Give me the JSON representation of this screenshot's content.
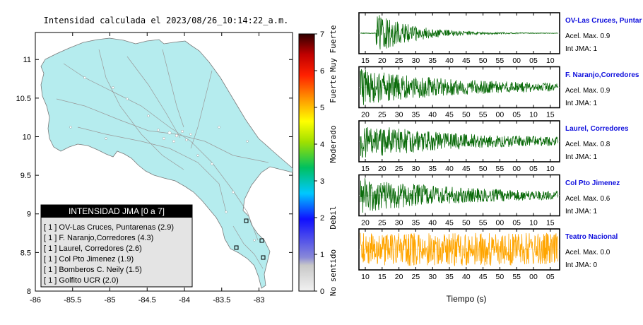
{
  "map": {
    "title": "Intensidad calculada el 2023/08/26_10:14:22_a.m.",
    "x_ticks": [
      "-86",
      "-85.5",
      "-85",
      "-84.5",
      "-84",
      "-83.5",
      "-83"
    ],
    "y_ticks": [
      "11",
      "10.5",
      "10",
      "9.5",
      "9",
      "8.5",
      "8"
    ]
  },
  "colorbar": {
    "ticks": [
      "0",
      "1",
      "2",
      "3",
      "4",
      "5",
      "6",
      "7"
    ],
    "category_labels": [
      "No sentido",
      "Debil",
      "Moderado",
      "Fuerte",
      "Muy Fuerte"
    ]
  },
  "legend": {
    "title": "INTENSIDAD JMA [0 a 7]",
    "entries": [
      "[ 1 ] OV-Las Cruces, Puntarenas (2.9)",
      "[ 1 ] F. Naranjo,Corredores (4.3)",
      "[ 1 ] Laurel, Corredores (2.6)",
      "[ 1 ] Col Pto Jimenez (1.9)",
      "[ 1 ] Bomberos C. Neily (1.5)",
      "[ 1 ] Golfito UCR (2.0)"
    ]
  },
  "chart_data": [
    {
      "type": "heatmap",
      "title": "Intensidad calculada el 2023/08/26_10:14:22_a.m.",
      "xlim": [
        -86,
        -82.55
      ],
      "ylim": [
        8,
        11.35
      ],
      "colorbar_range": [
        0,
        7
      ],
      "colorbar_labels": [
        "No sentido",
        "Debil",
        "Moderado",
        "Fuerte",
        "Muy Fuerte"
      ],
      "fill_value": 1,
      "legend_title": "INTENSIDAD JMA [0 a 7]"
    },
    {
      "type": "line",
      "xlabel": "Tiempo (s)",
      "color_primary": "#0a6b0a",
      "color_last": "#ffa500",
      "series": [
        {
          "name": "OV-Las Cruces, Puntar",
          "acel_max": "Acel. Max. 0.9",
          "int_jma": "Int JMA: 1",
          "x_ticks": [
            "15",
            "20",
            "25",
            "30",
            "35",
            "40",
            "45",
            "50",
            "55",
            "00",
            "05",
            "10"
          ]
        },
        {
          "name": "F. Naranjo,Corredores",
          "acel_max": "Acel. Max. 0.9",
          "int_jma": "Int JMA: 1",
          "x_ticks": [
            "20",
            "25",
            "30",
            "35",
            "40",
            "45",
            "50",
            "55",
            "00",
            "05",
            "10",
            "15"
          ]
        },
        {
          "name": "Laurel, Corredores",
          "acel_max": "Acel. Max. 0.8",
          "int_jma": "Int JMA: 1",
          "x_ticks": [
            "15",
            "20",
            "25",
            "30",
            "35",
            "40",
            "45",
            "50",
            "55",
            "00",
            "05",
            "10"
          ]
        },
        {
          "name": "Col Pto Jimenez",
          "acel_max": "Acel. Max. 0.6",
          "int_jma": "Int JMA: 1",
          "x_ticks": [
            "20",
            "25",
            "30",
            "35",
            "40",
            "45",
            "50",
            "55",
            "00",
            "05",
            "10",
            "15"
          ]
        },
        {
          "name": "Teatro Nacional",
          "acel_max": "Acel. Max. 0.0",
          "int_jma": "Int JMA: 0",
          "x_ticks": [
            "10",
            "15",
            "20",
            "25",
            "30",
            "35",
            "40",
            "45",
            "50",
            "55",
            "00",
            "05"
          ]
        }
      ]
    }
  ]
}
